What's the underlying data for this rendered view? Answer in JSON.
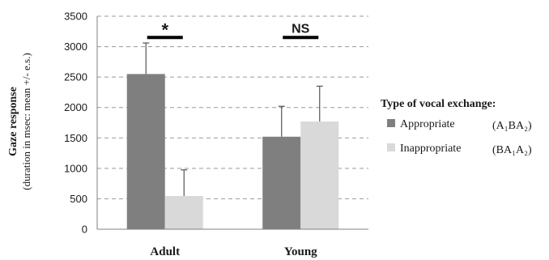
{
  "chart_data": {
    "type": "bar",
    "title": "",
    "ylabel": "Gaze response",
    "ylabel_sub": "(duration in msec: mean +/- e.s.)",
    "xlabel": "",
    "ylim": [
      0,
      3500
    ],
    "yticks": [
      0,
      500,
      1000,
      1500,
      2000,
      2500,
      3000,
      3500
    ],
    "grid": "horizontal-dashed",
    "categories": [
      "Adult",
      "Young"
    ],
    "series": [
      {
        "name": "Appropriate",
        "notation": "(A₁BA₂)",
        "color": "#7f7f7f",
        "values": [
          2550,
          1520
        ],
        "error_upper": [
          510,
          500
        ]
      },
      {
        "name": "Inappropriate",
        "notation": "(BA₁A₂)",
        "color": "#d9d9d9",
        "values": [
          545,
          1770
        ],
        "error_upper": [
          430,
          580
        ]
      }
    ],
    "significance": [
      {
        "category": "Adult",
        "label": "*",
        "y": 3150
      },
      {
        "category": "Young",
        "label": "NS",
        "y": 3150
      }
    ],
    "legend": {
      "title": "Type of vocal exchange:",
      "position": "right"
    }
  }
}
